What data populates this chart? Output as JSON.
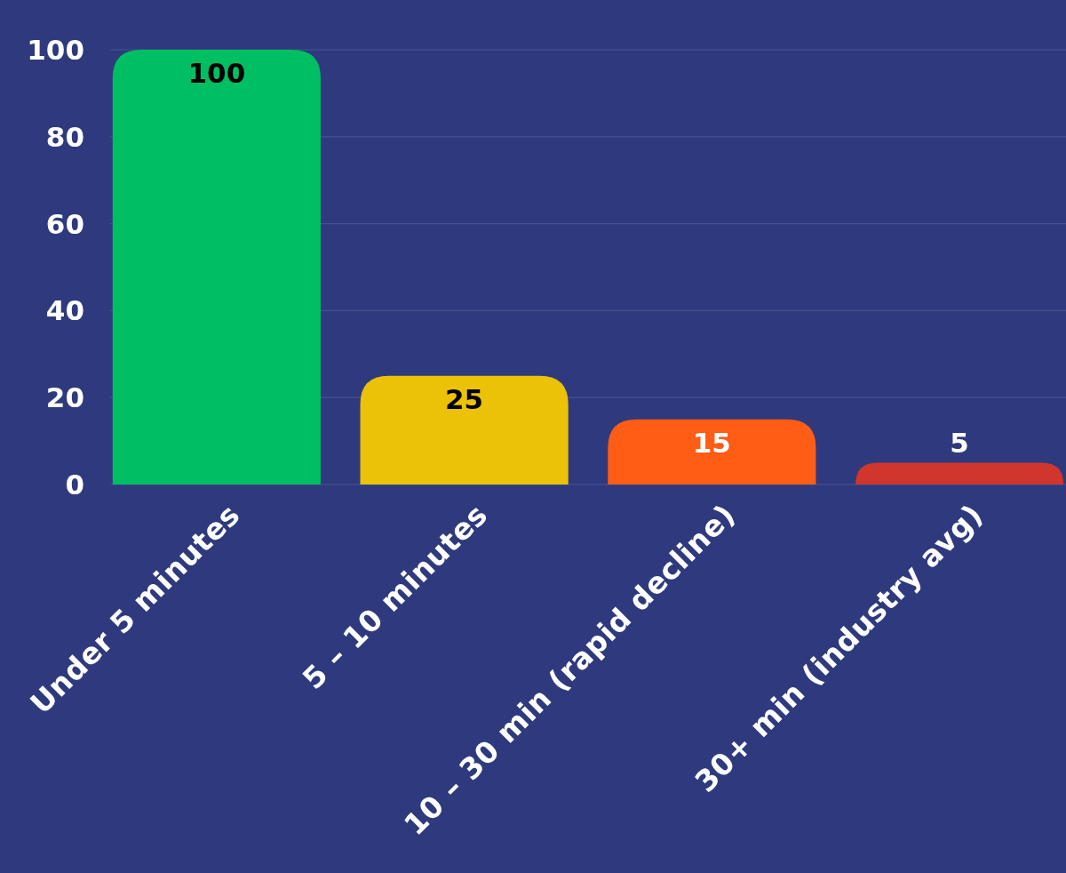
{
  "chart_data": {
    "type": "bar",
    "categories": [
      "Under 5 minutes",
      "5 – 10 minutes",
      "10 – 30 min (rapid decline)",
      "30+ min (industry avg)"
    ],
    "values": [
      100,
      25,
      15,
      5
    ],
    "colors": [
      "#00bf63",
      "#ebc207",
      "#ff5c16",
      "#d0362e"
    ],
    "ylim": [
      0,
      100
    ],
    "yticks": [
      0,
      20,
      40,
      60,
      80,
      100
    ],
    "grid": "y",
    "data_labels": true
  }
}
